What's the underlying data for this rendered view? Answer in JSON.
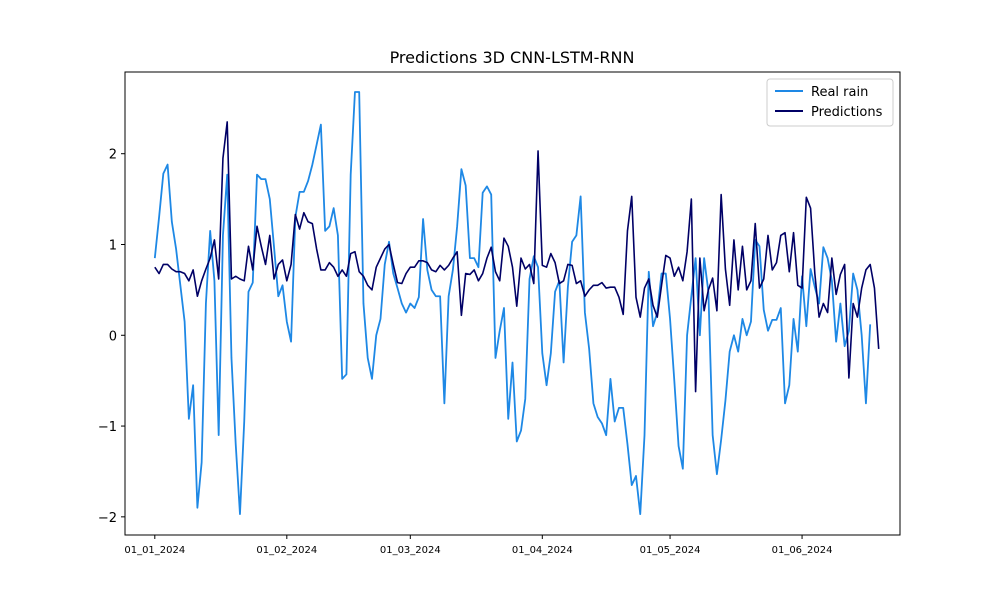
{
  "chart_data": {
    "type": "line",
    "title": "Predictions 3D CNN-LSTM-RNN",
    "xlabel": "",
    "ylabel": "",
    "ylim": [
      -2.2,
      2.9
    ],
    "yticks": [
      -2,
      -1,
      0,
      1,
      2
    ],
    "ytick_labels": [
      "−2",
      "−1",
      "0",
      "1",
      "2"
    ],
    "x_start": "2024-01-01",
    "x_end": "2024-06-17",
    "xlim": [
      "2023-12-25",
      "2024-06-24"
    ],
    "xticks": [
      "2024-01-01",
      "2024-02-01",
      "2024-03-01",
      "2024-04-01",
      "2024-05-01",
      "2024-06-01"
    ],
    "xtick_labels": [
      "01_01_2024",
      "01_02_2024",
      "01_03_2024",
      "01_04_2024",
      "01_05_2024",
      "01_06_2024"
    ],
    "grid": false,
    "legend_position": "top-right",
    "series": [
      {
        "name": "Real rain",
        "color": "#1e88e5",
        "values": [
          0.85,
          1.3,
          1.78,
          1.88,
          1.25,
          0.95,
          0.55,
          0.15,
          -0.92,
          -0.55,
          -1.9,
          -1.4,
          0.35,
          1.15,
          0.6,
          -1.1,
          1.1,
          1.77,
          -0.25,
          -1.2,
          -1.97,
          -0.95,
          0.48,
          0.58,
          1.77,
          1.72,
          1.72,
          1.5,
          0.97,
          0.43,
          0.55,
          0.15,
          -0.07,
          1.3,
          1.58,
          1.58,
          1.7,
          1.88,
          2.1,
          2.32,
          1.15,
          1.2,
          1.4,
          1.1,
          -0.48,
          -0.43,
          1.77,
          2.68,
          2.68,
          0.35,
          -0.25,
          -0.48,
          0.0,
          0.18,
          0.78,
          1.03,
          0.68,
          0.52,
          0.35,
          0.25,
          0.35,
          0.3,
          0.42,
          1.28,
          0.72,
          0.5,
          0.43,
          0.43,
          -0.75,
          0.43,
          0.72,
          1.2,
          1.83,
          1.65,
          0.85,
          0.85,
          0.75,
          1.57,
          1.64,
          1.55,
          -0.25,
          0.05,
          0.3,
          -0.92,
          -0.3,
          -1.17,
          -1.05,
          -0.7,
          0.62,
          0.87,
          0.75,
          -0.2,
          -0.55,
          -0.2,
          0.48,
          0.6,
          -0.3,
          0.53,
          1.03,
          1.1,
          1.53,
          0.25,
          -0.15,
          -0.75,
          -0.9,
          -0.97,
          -1.1,
          -0.48,
          -0.95,
          -0.8,
          -0.8,
          -1.2,
          -1.65,
          -1.55,
          -1.97,
          -1.1,
          0.7,
          0.1,
          0.25,
          0.68,
          0.68,
          0.18,
          -0.5,
          -1.22,
          -1.47,
          0.0,
          0.43,
          0.85,
          0.0,
          0.85,
          0.48,
          -1.1,
          -1.53,
          -1.15,
          -0.72,
          -0.18,
          0.0,
          -0.18,
          0.18,
          0.0,
          0.15,
          1.05,
          0.98,
          0.28,
          0.05,
          0.17,
          0.17,
          0.3,
          -0.75,
          -0.55,
          0.18,
          -0.18,
          0.65,
          0.1,
          0.73,
          0.53,
          0.35,
          0.97,
          0.85,
          0.6,
          -0.07,
          0.35,
          -0.12,
          0.05,
          0.68,
          0.5,
          0.0,
          -0.75,
          0.12
        ]
      },
      {
        "name": "Predictions",
        "color": "#000066",
        "values": [
          0.75,
          0.68,
          0.78,
          0.78,
          0.73,
          0.7,
          0.7,
          0.68,
          0.6,
          0.72,
          0.43,
          0.6,
          0.73,
          0.85,
          1.05,
          0.62,
          1.95,
          2.35,
          0.62,
          0.65,
          0.62,
          0.6,
          0.98,
          0.72,
          1.2,
          0.98,
          0.78,
          1.1,
          0.62,
          0.78,
          0.83,
          0.6,
          0.78,
          1.33,
          1.17,
          1.35,
          1.25,
          1.23,
          0.95,
          0.72,
          0.72,
          0.8,
          0.75,
          0.65,
          0.72,
          0.65,
          0.9,
          0.92,
          0.7,
          0.65,
          0.55,
          0.5,
          0.75,
          0.85,
          0.95,
          1.0,
          0.78,
          0.58,
          0.57,
          0.68,
          0.75,
          0.75,
          0.82,
          0.82,
          0.8,
          0.72,
          0.7,
          0.77,
          0.72,
          0.77,
          0.85,
          0.92,
          0.22,
          0.68,
          0.67,
          0.72,
          0.6,
          0.68,
          0.85,
          0.97,
          0.7,
          0.6,
          1.07,
          0.98,
          0.75,
          0.32,
          0.85,
          0.73,
          0.78,
          0.57,
          2.03,
          0.77,
          0.75,
          0.9,
          0.8,
          0.57,
          0.6,
          0.78,
          0.77,
          0.57,
          0.6,
          0.43,
          0.5,
          0.55,
          0.55,
          0.58,
          0.52,
          0.53,
          0.53,
          0.42,
          0.23,
          1.15,
          1.53,
          0.42,
          0.2,
          0.52,
          0.62,
          0.33,
          0.2,
          0.55,
          0.88,
          0.85,
          0.65,
          0.75,
          0.6,
          0.92,
          1.5,
          -0.62,
          0.85,
          0.27,
          0.5,
          0.63,
          0.27,
          1.55,
          0.73,
          0.33,
          1.05,
          0.5,
          0.98,
          0.5,
          0.6,
          1.23,
          0.52,
          0.62,
          1.1,
          0.72,
          0.8,
          1.1,
          1.13,
          0.7,
          1.13,
          0.55,
          0.52,
          1.52,
          1.4,
          0.68,
          0.2,
          0.35,
          0.25,
          0.85,
          0.45,
          0.67,
          0.78,
          -0.47,
          0.35,
          0.2,
          0.52,
          0.72,
          0.78,
          0.52,
          -0.15
        ]
      }
    ]
  }
}
